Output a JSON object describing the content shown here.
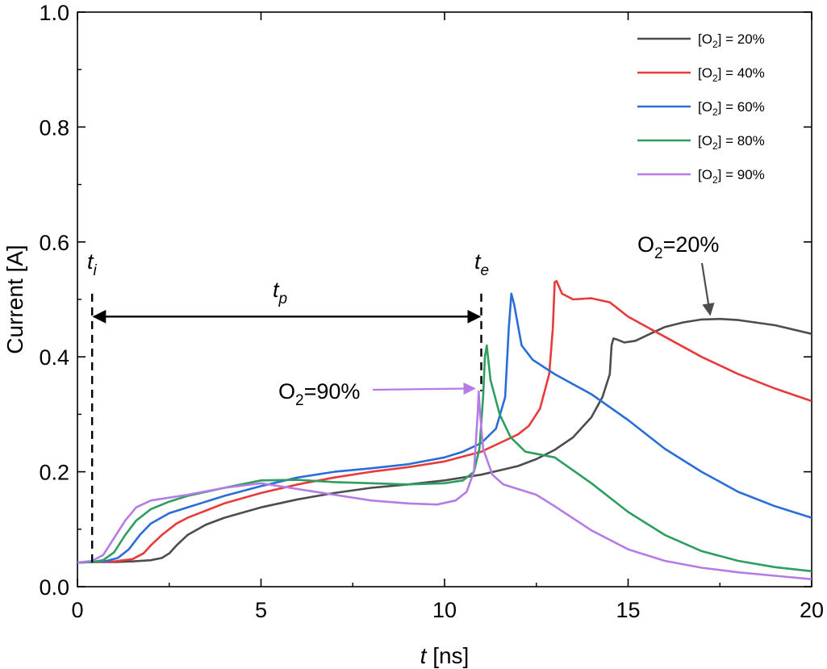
{
  "chart_data": {
    "type": "line",
    "xlabel_var": "t",
    "xlabel_unit": " [ns]",
    "ylabel": "Current [A]",
    "xlim": [
      0,
      20
    ],
    "ylim": [
      0,
      1.0
    ],
    "x_ticks": [
      0,
      5,
      10,
      15,
      20
    ],
    "y_ticks": [
      0.0,
      0.2,
      0.4,
      0.6,
      0.8,
      1.0
    ],
    "x_tick_labels": [
      "0",
      "5",
      "10",
      "15",
      "20"
    ],
    "y_tick_labels": [
      "0.0",
      "0.2",
      "0.4",
      "0.6",
      "0.8",
      "1.0"
    ],
    "legend_position": "top-right",
    "grid": false,
    "series": [
      {
        "name": "[O2] = 20%",
        "legend_main": "[O",
        "legend_sub": "2",
        "legend_rest": "] = 20%",
        "color": "#4d4d4d",
        "points": [
          [
            0,
            0.042
          ],
          [
            0.4,
            0.043
          ],
          [
            1.0,
            0.043
          ],
          [
            1.5,
            0.044
          ],
          [
            2.0,
            0.046
          ],
          [
            2.3,
            0.05
          ],
          [
            2.5,
            0.058
          ],
          [
            2.7,
            0.072
          ],
          [
            3.0,
            0.09
          ],
          [
            3.5,
            0.108
          ],
          [
            4.0,
            0.12
          ],
          [
            5.0,
            0.138
          ],
          [
            6.0,
            0.152
          ],
          [
            7.0,
            0.163
          ],
          [
            8.0,
            0.172
          ],
          [
            9.0,
            0.178
          ],
          [
            10.0,
            0.185
          ],
          [
            11.0,
            0.195
          ],
          [
            12.0,
            0.21
          ],
          [
            12.5,
            0.222
          ],
          [
            13.0,
            0.238
          ],
          [
            13.5,
            0.26
          ],
          [
            14.0,
            0.295
          ],
          [
            14.3,
            0.33
          ],
          [
            14.5,
            0.37
          ],
          [
            14.55,
            0.42
          ],
          [
            14.6,
            0.432
          ],
          [
            14.7,
            0.43
          ],
          [
            14.9,
            0.425
          ],
          [
            15.2,
            0.428
          ],
          [
            15.6,
            0.44
          ],
          [
            16.0,
            0.452
          ],
          [
            16.5,
            0.46
          ],
          [
            17.0,
            0.465
          ],
          [
            17.5,
            0.466
          ],
          [
            18.0,
            0.464
          ],
          [
            19.0,
            0.455
          ],
          [
            20.0,
            0.44
          ]
        ]
      },
      {
        "name": "[O2] = 40%",
        "legend_main": "[O",
        "legend_sub": "2",
        "legend_rest": "] = 40%",
        "color": "#e83a3a",
        "points": [
          [
            0,
            0.042
          ],
          [
            0.4,
            0.043
          ],
          [
            1.0,
            0.044
          ],
          [
            1.5,
            0.048
          ],
          [
            1.8,
            0.058
          ],
          [
            2.0,
            0.072
          ],
          [
            2.3,
            0.09
          ],
          [
            2.7,
            0.11
          ],
          [
            3.0,
            0.12
          ],
          [
            4.0,
            0.145
          ],
          [
            5.0,
            0.163
          ],
          [
            6.0,
            0.178
          ],
          [
            7.0,
            0.19
          ],
          [
            8.0,
            0.2
          ],
          [
            9.0,
            0.208
          ],
          [
            10.0,
            0.218
          ],
          [
            11.0,
            0.235
          ],
          [
            11.5,
            0.25
          ],
          [
            12.0,
            0.265
          ],
          [
            12.3,
            0.28
          ],
          [
            12.6,
            0.31
          ],
          [
            12.85,
            0.37
          ],
          [
            12.95,
            0.45
          ],
          [
            13.0,
            0.53
          ],
          [
            13.05,
            0.532
          ],
          [
            13.2,
            0.51
          ],
          [
            13.5,
            0.5
          ],
          [
            14.0,
            0.502
          ],
          [
            14.5,
            0.495
          ],
          [
            15.0,
            0.47
          ],
          [
            16.0,
            0.435
          ],
          [
            17.0,
            0.4
          ],
          [
            18.0,
            0.37
          ],
          [
            19.0,
            0.345
          ],
          [
            20.0,
            0.323
          ]
        ]
      },
      {
        "name": "[O2] = 60%",
        "legend_main": "[O",
        "legend_sub": "2",
        "legend_rest": "] = 60%",
        "color": "#2a6dd8",
        "points": [
          [
            0,
            0.042
          ],
          [
            0.4,
            0.043
          ],
          [
            0.8,
            0.045
          ],
          [
            1.1,
            0.05
          ],
          [
            1.4,
            0.065
          ],
          [
            1.7,
            0.09
          ],
          [
            2.0,
            0.11
          ],
          [
            2.5,
            0.128
          ],
          [
            3.0,
            0.138
          ],
          [
            4.0,
            0.158
          ],
          [
            5.0,
            0.175
          ],
          [
            6.0,
            0.19
          ],
          [
            7.0,
            0.2
          ],
          [
            8.0,
            0.206
          ],
          [
            9.0,
            0.213
          ],
          [
            10.0,
            0.225
          ],
          [
            10.5,
            0.235
          ],
          [
            11.0,
            0.25
          ],
          [
            11.4,
            0.275
          ],
          [
            11.65,
            0.33
          ],
          [
            11.75,
            0.45
          ],
          [
            11.82,
            0.51
          ],
          [
            11.9,
            0.49
          ],
          [
            12.1,
            0.42
          ],
          [
            12.4,
            0.395
          ],
          [
            13.0,
            0.37
          ],
          [
            14.0,
            0.335
          ],
          [
            15.0,
            0.29
          ],
          [
            16.0,
            0.24
          ],
          [
            17.0,
            0.2
          ],
          [
            18.0,
            0.165
          ],
          [
            19.0,
            0.14
          ],
          [
            20.0,
            0.12
          ]
        ]
      },
      {
        "name": "[O2] = 80%",
        "legend_main": "[O",
        "legend_sub": "2",
        "legend_rest": "] = 80%",
        "color": "#2e9e5e",
        "points": [
          [
            0,
            0.042
          ],
          [
            0.4,
            0.043
          ],
          [
            0.7,
            0.046
          ],
          [
            1.0,
            0.06
          ],
          [
            1.3,
            0.09
          ],
          [
            1.6,
            0.115
          ],
          [
            2.0,
            0.135
          ],
          [
            2.5,
            0.148
          ],
          [
            3.0,
            0.158
          ],
          [
            4.0,
            0.172
          ],
          [
            5.0,
            0.185
          ],
          [
            6.0,
            0.186
          ],
          [
            7.0,
            0.182
          ],
          [
            8.0,
            0.18
          ],
          [
            9.0,
            0.178
          ],
          [
            10.0,
            0.18
          ],
          [
            10.5,
            0.185
          ],
          [
            10.8,
            0.2
          ],
          [
            10.95,
            0.24
          ],
          [
            11.05,
            0.33
          ],
          [
            11.1,
            0.4
          ],
          [
            11.15,
            0.42
          ],
          [
            11.25,
            0.36
          ],
          [
            11.5,
            0.3
          ],
          [
            11.8,
            0.26
          ],
          [
            12.2,
            0.235
          ],
          [
            13.0,
            0.225
          ],
          [
            14.0,
            0.18
          ],
          [
            15.0,
            0.13
          ],
          [
            16.0,
            0.09
          ],
          [
            17.0,
            0.062
          ],
          [
            18.0,
            0.045
          ],
          [
            19.0,
            0.034
          ],
          [
            20.0,
            0.027
          ]
        ]
      },
      {
        "name": "[O2] = 90%",
        "legend_main": "[O",
        "legend_sub": "2",
        "legend_rest": "] = 90%",
        "color": "#b57ce6",
        "points": [
          [
            0,
            0.042
          ],
          [
            0.4,
            0.045
          ],
          [
            0.7,
            0.055
          ],
          [
            1.0,
            0.085
          ],
          [
            1.3,
            0.115
          ],
          [
            1.6,
            0.138
          ],
          [
            2.0,
            0.15
          ],
          [
            3.0,
            0.16
          ],
          [
            4.0,
            0.172
          ],
          [
            5.0,
            0.18
          ],
          [
            6.0,
            0.17
          ],
          [
            7.0,
            0.16
          ],
          [
            8.0,
            0.15
          ],
          [
            9.0,
            0.145
          ],
          [
            9.8,
            0.143
          ],
          [
            10.3,
            0.15
          ],
          [
            10.6,
            0.165
          ],
          [
            10.8,
            0.2
          ],
          [
            10.9,
            0.3
          ],
          [
            10.93,
            0.34
          ],
          [
            10.97,
            0.3
          ],
          [
            11.05,
            0.24
          ],
          [
            11.3,
            0.195
          ],
          [
            11.6,
            0.178
          ],
          [
            12.0,
            0.17
          ],
          [
            12.5,
            0.16
          ],
          [
            13.0,
            0.14
          ],
          [
            14.0,
            0.098
          ],
          [
            15.0,
            0.065
          ],
          [
            16.0,
            0.045
          ],
          [
            17.0,
            0.033
          ],
          [
            18.0,
            0.025
          ],
          [
            19.0,
            0.019
          ],
          [
            20.0,
            0.013
          ]
        ]
      }
    ],
    "annotations": {
      "t_i": {
        "var": "t",
        "sub": "i",
        "x": 0.4
      },
      "t_e": {
        "var": "t",
        "sub": "e",
        "x": 11.0
      },
      "t_p": {
        "var": "t",
        "sub": "p",
        "y": 0.47
      },
      "o2_20": {
        "main": "O",
        "sub": "2",
        "rest": "=20%",
        "color": "#4d4d4d",
        "target": [
          17.3,
          0.465
        ]
      },
      "o2_90": {
        "main": "O",
        "sub": "2",
        "rest": "=90%",
        "color": "#b57ce6",
        "target": [
          10.95,
          0.345
        ]
      }
    }
  }
}
